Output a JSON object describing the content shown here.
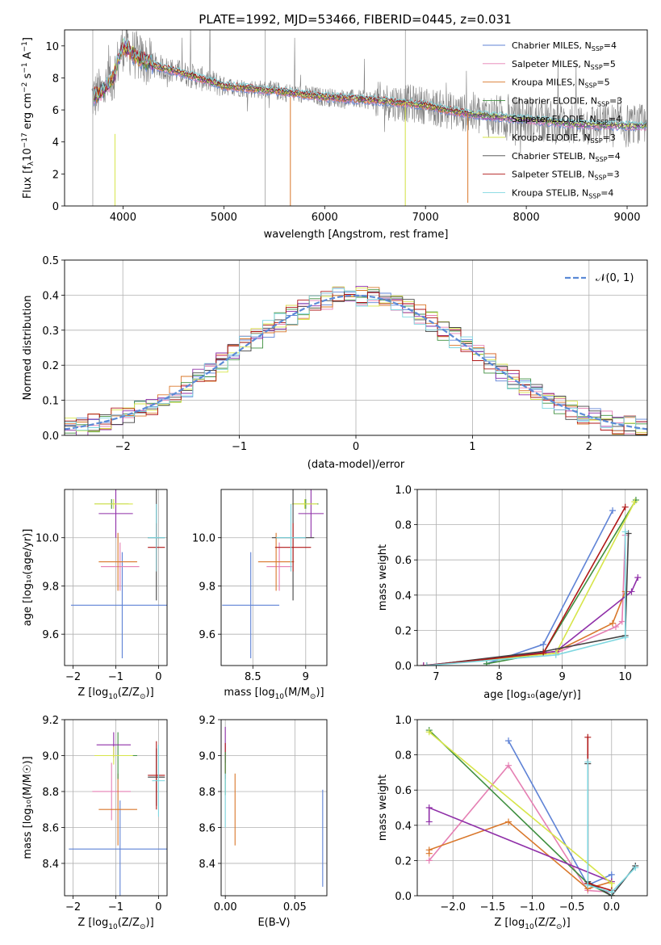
{
  "figure": {
    "title": "PLATE=1992, MJD=53466, FIBERID=0445, z=0.031"
  },
  "colors": {
    "Chabrier MILES": "#5f83d6",
    "Salpeter MILES": "#e57fb3",
    "Kroupa MILES": "#d9772a",
    "Chabrier ELODIE": "#3f8f3f",
    "Salpeter ELODIE": "#8f2fa8",
    "Kroupa ELODIE": "#d7e54a",
    "Chabrier STELIB": "#444444",
    "Salpeter STELIB": "#b01818",
    "Kroupa STELIB": "#7fd7e0",
    "data": "#808080",
    "normal": "#5b8ad6"
  },
  "chart_data": [
    {
      "id": "spectrum",
      "type": "line",
      "title": "PLATE=1992, MJD=53466, FIBERID=0445, z=0.031",
      "xlabel": "wavelength [Angstrom, rest frame]",
      "ylabel": "Flux [f_λ 10^-17 erg cm^-2 s^-1 A^-1]",
      "xlim": [
        3420,
        9200
      ],
      "ylim": [
        0,
        11
      ],
      "xticks": [
        4000,
        5000,
        6000,
        7000,
        8000,
        9000
      ],
      "yticks": [
        0,
        2,
        4,
        6,
        8,
        10
      ],
      "legend_position": "top-right",
      "legend": [
        {
          "label": "Chabrier MILES, N",
          "sub": "SSP",
          "n": "=4"
        },
        {
          "label": "Salpeter MILES, N",
          "sub": "SSP",
          "n": "=5"
        },
        {
          "label": "Kroupa MILES, N",
          "sub": "SSP",
          "n": "=5"
        },
        {
          "label": "Chabrier ELODIE, N",
          "sub": "SSP",
          "n": "=3"
        },
        {
          "label": "Salpeter ELODIE, N",
          "sub": "SSP",
          "n": "=4"
        },
        {
          "label": "Kroupa ELODIE, N",
          "sub": "SSP",
          "n": "=3"
        },
        {
          "label": "Chabrier STELIB, N",
          "sub": "SSP",
          "n": "=4"
        },
        {
          "label": "Salpeter STELIB, N",
          "sub": "SSP",
          "n": "=3"
        },
        {
          "label": "Kroupa STELIB, N",
          "sub": "SSP",
          "n": "=4"
        }
      ],
      "continuum_x": [
        3700,
        3800,
        3900,
        4000,
        4100,
        4200,
        4400,
        4600,
        4800,
        5000,
        5500,
        6000,
        6500,
        7000,
        7200,
        7400,
        7420,
        7500,
        8000,
        8500,
        9000,
        9200
      ],
      "continuum_y": [
        6.8,
        7.2,
        8.0,
        10.0,
        9.5,
        9.1,
        8.6,
        8.3,
        7.9,
        7.5,
        7.2,
        6.8,
        6.6,
        6.3,
        6.0,
        5.8,
        5.8,
        5.7,
        5.4,
        5.1,
        5.0,
        5.0
      ]
    },
    {
      "id": "residuals",
      "type": "histogram",
      "xlabel": "(data-model)/error",
      "ylabel": "Normed distribution",
      "xlim": [
        -2.5,
        2.5
      ],
      "ylim": [
        0,
        0.5
      ],
      "xticks": [
        -2,
        -1,
        0,
        1,
        2
      ],
      "yticks": [
        0.0,
        0.1,
        0.2,
        0.3,
        0.4,
        0.5
      ],
      "grid": true,
      "bin_width": 0.1,
      "legend_position": "top-right",
      "legend_label": "𝒩(0, 1)"
    },
    {
      "id": "age_vs_Z",
      "type": "errorbar",
      "xlabel_main": "Z [log",
      "xlabel_tail": "(Z/Z",
      "xlabel_end": ")]",
      "ylabel": "age  [log10(age/yr)]",
      "xlim": [
        -2.2,
        0.2
      ],
      "ylim": [
        9.47,
        10.2
      ],
      "xticks": [
        -2,
        -1,
        0
      ],
      "yticks": [
        9.6,
        9.8,
        10.0
      ],
      "points": [
        {
          "m": "Chabrier MILES",
          "x": -0.85,
          "xe": 1.2,
          "y": 9.72,
          "ye": 0.22
        },
        {
          "m": "Salpeter MILES",
          "x": -0.9,
          "xe": 0.45,
          "y": 9.88,
          "ye": 0.1
        },
        {
          "m": "Kroupa MILES",
          "x": -0.95,
          "xe": 0.45,
          "y": 9.9,
          "ye": 0.12
        },
        {
          "m": "Chabrier ELODIE",
          "x": -1.1,
          "xe": 0.4,
          "y": 10.14,
          "ye": 0.02
        },
        {
          "m": "Salpeter ELODIE",
          "x": -1.0,
          "xe": 0.4,
          "y": 10.1,
          "ye": 0.1
        },
        {
          "m": "Kroupa ELODIE",
          "x": -1.05,
          "xe": 0.45,
          "y": 10.14,
          "ye": 0.02
        },
        {
          "m": "Chabrier STELIB",
          "x": -0.05,
          "xe": 0.2,
          "y": 10.0,
          "ye": 0.26
        },
        {
          "m": "Salpeter STELIB",
          "x": -0.05,
          "xe": 0.2,
          "y": 9.96,
          "ye": 0.1
        },
        {
          "m": "Kroupa STELIB",
          "x": -0.05,
          "xe": 0.2,
          "y": 10.0,
          "ye": 0.14
        }
      ]
    },
    {
      "id": "age_vs_mass",
      "type": "errorbar",
      "xlabel_main": "mass [log",
      "xlabel_tail": "(M/M",
      "xlabel_end": ")]",
      "xlim": [
        8.2,
        9.2
      ],
      "ylim": [
        9.47,
        10.2
      ],
      "xticks": [
        8.5,
        9.0
      ],
      "yticks": [
        9.6,
        9.8,
        10.0
      ],
      "points": [
        {
          "m": "Chabrier MILES",
          "x": 8.48,
          "xe": 0.27,
          "y": 9.72,
          "ye": 0.22
        },
        {
          "m": "Salpeter MILES",
          "x": 8.75,
          "xe": 0.12,
          "y": 9.88,
          "ye": 0.1
        },
        {
          "m": "Kroupa MILES",
          "x": 8.72,
          "xe": 0.17,
          "y": 9.9,
          "ye": 0.12
        },
        {
          "m": "Chabrier ELODIE",
          "x": 9.0,
          "xe": 0.12,
          "y": 10.14,
          "ye": 0.02
        },
        {
          "m": "Salpeter ELODIE",
          "x": 9.05,
          "xe": 0.12,
          "y": 10.1,
          "ye": 0.1
        },
        {
          "m": "Kroupa ELODIE",
          "x": 8.99,
          "xe": 0.12,
          "y": 10.14,
          "ye": 0.02
        },
        {
          "m": "Chabrier STELIB",
          "x": 8.88,
          "xe": 0.2,
          "y": 10.0,
          "ye": 0.26
        },
        {
          "m": "Salpeter STELIB",
          "x": 8.88,
          "xe": 0.17,
          "y": 9.96,
          "ye": 0.1
        },
        {
          "m": "Kroupa STELIB",
          "x": 8.86,
          "xe": 0.14,
          "y": 10.0,
          "ye": 0.14
        }
      ]
    },
    {
      "id": "mw_vs_age",
      "type": "line",
      "xlabel": "age  [log10(age/yr)]",
      "ylabel": "mass weight",
      "xlim": [
        6.7,
        10.35
      ],
      "ylim": [
        0,
        1
      ],
      "xticks": [
        7,
        8,
        9,
        10
      ],
      "yticks": [
        0.0,
        0.2,
        0.4,
        0.6,
        0.8,
        1.0
      ],
      "series": [
        {
          "m": "Chabrier MILES",
          "x": [
            7.8,
            8.7,
            9.8
          ],
          "y": [
            0.01,
            0.12,
            0.88
          ]
        },
        {
          "m": "Salpeter MILES",
          "x": [
            6.8,
            8.9,
            9.85,
            9.95,
            10.0
          ],
          "y": [
            0.0,
            0.07,
            0.22,
            0.25,
            0.74
          ]
        },
        {
          "m": "Kroupa MILES",
          "x": [
            6.8,
            8.9,
            9.8,
            10.0
          ],
          "y": [
            0.0,
            0.08,
            0.24,
            0.42
          ]
        },
        {
          "m": "Chabrier ELODIE",
          "x": [
            7.8,
            8.7,
            10.17
          ],
          "y": [
            0.01,
            0.07,
            0.94
          ]
        },
        {
          "m": "Salpeter ELODIE",
          "x": [
            6.8,
            8.9,
            10.1,
            10.2
          ],
          "y": [
            0.0,
            0.08,
            0.42,
            0.5
          ]
        },
        {
          "m": "Kroupa ELODIE",
          "x": [
            6.85,
            8.9,
            10.15
          ],
          "y": [
            0.0,
            0.07,
            0.93
          ]
        },
        {
          "m": "Chabrier STELIB",
          "x": [
            6.85,
            8.7,
            10.0,
            10.05
          ],
          "y": [
            0.0,
            0.08,
            0.17,
            0.75
          ]
        },
        {
          "m": "Salpeter STELIB",
          "x": [
            6.85,
            8.7,
            10.0
          ],
          "y": [
            0.0,
            0.07,
            0.9
          ]
        },
        {
          "m": "Kroupa STELIB",
          "x": [
            6.85,
            8.9,
            10.0,
            10.0
          ],
          "y": [
            0.0,
            0.06,
            0.16,
            0.76
          ]
        }
      ]
    },
    {
      "id": "mass_vs_Z",
      "type": "errorbar",
      "xlabel_main": "Z [log",
      "xlabel_tail": "(Z/Z",
      "xlabel_end": ")]",
      "ylabel": "mass [log10(M/M☉)]",
      "xlim": [
        -2.2,
        0.2
      ],
      "ylim": [
        8.22,
        9.2
      ],
      "xticks": [
        -2,
        -1,
        0
      ],
      "yticks": [
        8.4,
        8.6,
        8.8,
        9.0,
        9.2
      ],
      "points": [
        {
          "m": "Chabrier MILES",
          "x": -0.9,
          "xe": 1.2,
          "y": 8.48,
          "ye": 0.27
        },
        {
          "m": "Salpeter MILES",
          "x": -1.1,
          "xe": 0.45,
          "y": 8.8,
          "ye": 0.16
        },
        {
          "m": "Kroupa MILES",
          "x": -0.95,
          "xe": 0.45,
          "y": 8.7,
          "ye": 0.2
        },
        {
          "m": "Chabrier ELODIE",
          "x": -0.95,
          "xe": 0.45,
          "y": 9.0,
          "ye": 0.13
        },
        {
          "m": "Salpeter ELODIE",
          "x": -1.05,
          "xe": 0.4,
          "y": 9.06,
          "ye": 0.07
        },
        {
          "m": "Kroupa ELODIE",
          "x": -1.05,
          "xe": 0.45,
          "y": 9.0,
          "ye": 0.05
        },
        {
          "m": "Chabrier STELIB",
          "x": -0.05,
          "xe": 0.2,
          "y": 8.88,
          "ye": 0.16
        },
        {
          "m": "Salpeter STELIB",
          "x": -0.05,
          "xe": 0.2,
          "y": 8.89,
          "ye": 0.19
        },
        {
          "m": "Kroupa STELIB",
          "x": 0.0,
          "xe": 0.15,
          "y": 8.86,
          "ye": 0.2
        }
      ]
    },
    {
      "id": "mass_vs_ebv",
      "type": "errorbar",
      "xlabel": "E(B-V)",
      "xlim": [
        -0.003,
        0.073
      ],
      "ylim": [
        8.22,
        9.2
      ],
      "xticks": [
        0.0,
        0.05
      ],
      "xticklabels": [
        "0.00",
        "0.05"
      ],
      "yticks": [
        8.4,
        8.6,
        8.8,
        9.0,
        9.2
      ],
      "points": [
        {
          "m": "Chabrier MILES",
          "x": 0.07,
          "xe": 0,
          "y": 8.54,
          "ye": 0.27
        },
        {
          "m": "Salpeter ELODIE",
          "x": 0.0,
          "xe": 0,
          "y": 9.06,
          "ye": 0.1
        },
        {
          "m": "Kroupa MILES",
          "x": 0.007,
          "xe": 0,
          "y": 8.7,
          "ye": 0.2
        },
        {
          "m": "Salpeter STELIB",
          "x": 0.0,
          "xe": 0,
          "y": 8.97,
          "ye": 0.1
        },
        {
          "m": "Chabrier ELODIE",
          "x": 0.0,
          "xe": 0,
          "y": 8.9,
          "ye": 0.12
        },
        {
          "m": "Kroupa STELIB",
          "x": 0.0,
          "xe": 0,
          "y": 8.75,
          "ye": 0.15
        }
      ]
    },
    {
      "id": "mw_vs_Z",
      "type": "line",
      "xlabel_main": "Z [log",
      "xlabel_tail": "(Z/Z",
      "xlabel_end": ")]",
      "ylabel": "mass weight",
      "xlim": [
        -2.45,
        0.45
      ],
      "ylim": [
        0,
        1
      ],
      "xticks": [
        -2.0,
        -1.5,
        -1.0,
        -0.5,
        0.0
      ],
      "xticklabels": [
        "−2.0",
        "−1.5",
        "−1.0",
        "−0.5",
        "0.0"
      ],
      "yticks": [
        0.0,
        0.2,
        0.4,
        0.6,
        0.8,
        1.0
      ],
      "series": [
        {
          "m": "Chabrier MILES",
          "x": [
            -1.3,
            -0.3,
            0.0,
            0.0
          ],
          "y": [
            0.88,
            0.06,
            0.12,
            0.0
          ]
        },
        {
          "m": "Salpeter MILES",
          "x": [
            -2.3,
            -1.3,
            -0.3,
            0.0,
            0.0
          ],
          "y": [
            0.2,
            0.74,
            0.03,
            0.02,
            0.0
          ]
        },
        {
          "m": "Kroupa MILES",
          "x": [
            -2.3,
            -2.3,
            -1.3,
            -0.3,
            0.0,
            0.0
          ],
          "y": [
            0.24,
            0.26,
            0.42,
            0.04,
            0.08,
            0.0
          ]
        },
        {
          "m": "Chabrier ELODIE",
          "x": [
            -2.3,
            -0.3,
            0.0
          ],
          "y": [
            0.94,
            0.07,
            0.0
          ]
        },
        {
          "m": "Salpeter ELODIE",
          "x": [
            -2.3,
            -2.3,
            0.0
          ],
          "y": [
            0.42,
            0.5,
            0.08
          ]
        },
        {
          "m": "Kroupa ELODIE",
          "x": [
            -2.3,
            0.0,
            0.0
          ],
          "y": [
            0.93,
            0.07,
            0.0
          ]
        },
        {
          "m": "Chabrier STELIB",
          "x": [
            -0.3,
            -0.3,
            0.0,
            0.3
          ],
          "y": [
            0.75,
            0.08,
            0.0,
            0.17
          ]
        },
        {
          "m": "Salpeter STELIB",
          "x": [
            -0.3,
            -0.3,
            0.0
          ],
          "y": [
            0.9,
            0.07,
            0.03
          ]
        },
        {
          "m": "Kroupa STELIB",
          "x": [
            -0.3,
            -0.3,
            0.0,
            0.3
          ],
          "y": [
            0.76,
            0.06,
            0.02,
            0.16
          ]
        }
      ]
    }
  ]
}
